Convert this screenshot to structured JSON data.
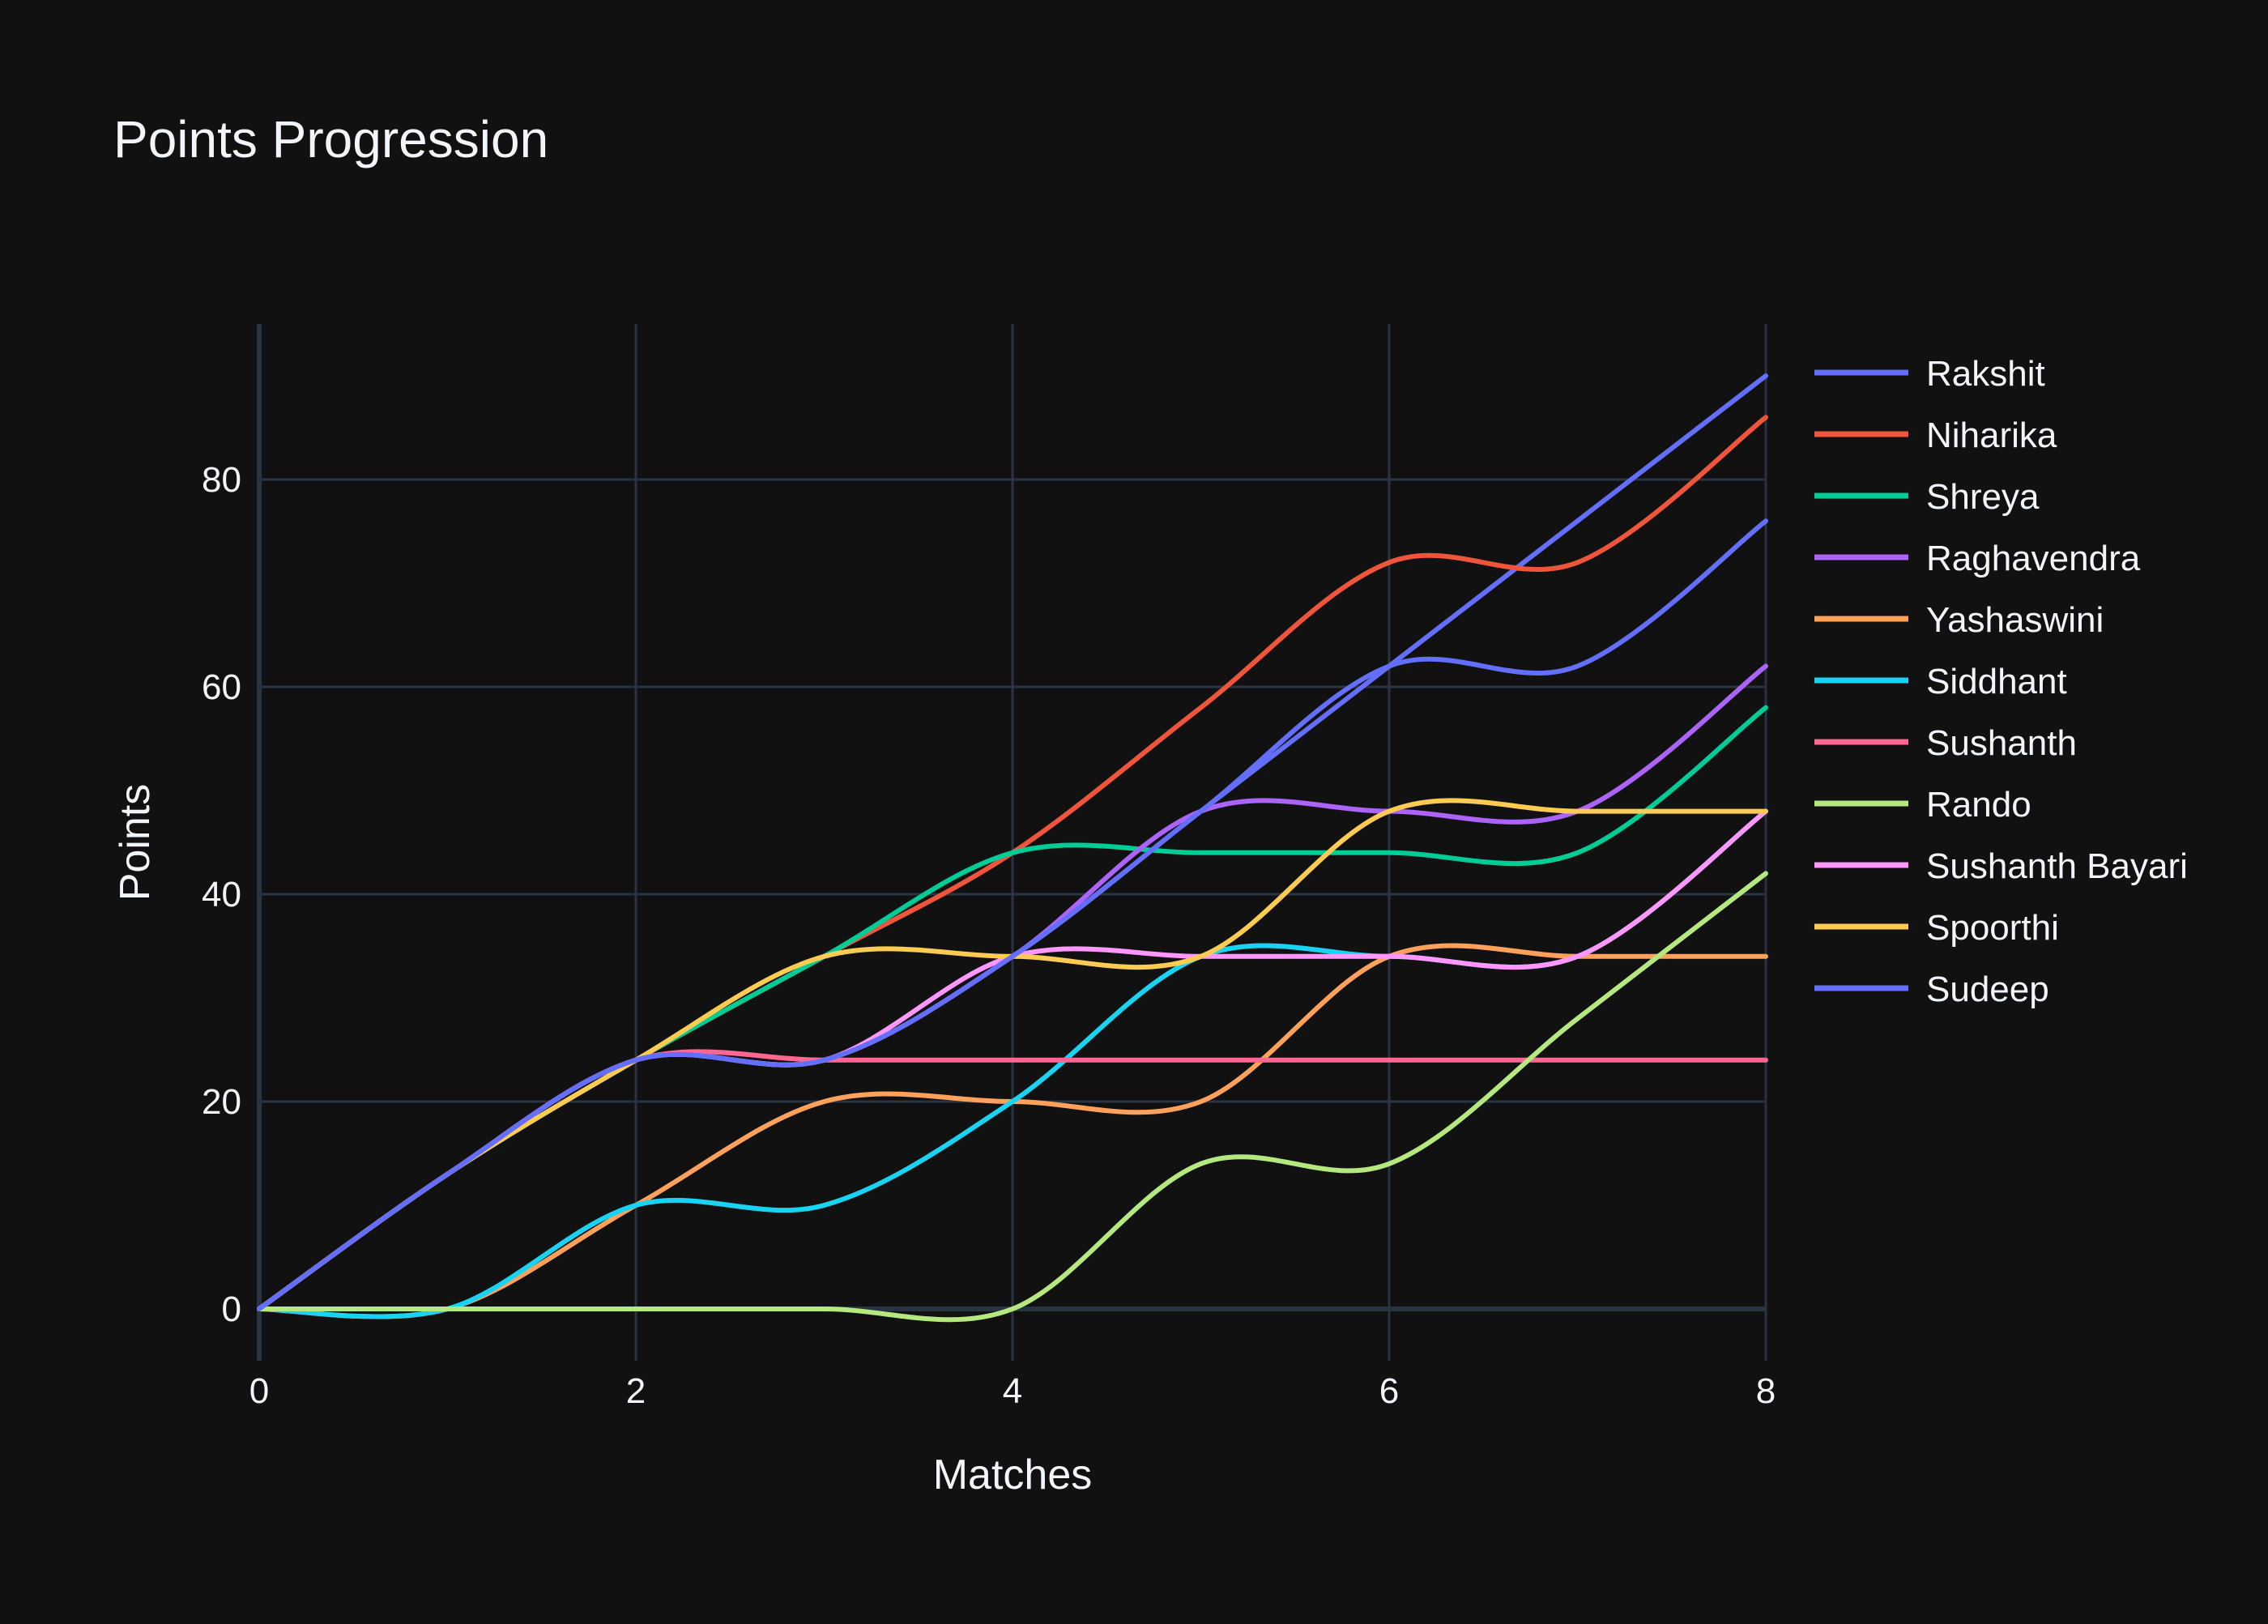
{
  "chart_data": {
    "type": "line",
    "title": "Points Progression",
    "xlabel": "Matches",
    "ylabel": "Points",
    "xlim": [
      0,
      8
    ],
    "ylim": [
      -5,
      95
    ],
    "xticks": [
      0,
      2,
      4,
      6,
      8
    ],
    "yticks": [
      0,
      20,
      40,
      60,
      80
    ],
    "grid": true,
    "legend_position": "right",
    "line_shape": "spline",
    "x": [
      0,
      1,
      2,
      3,
      4,
      5,
      6,
      7,
      8
    ],
    "series": [
      {
        "name": "Rakshit",
        "color": "#636efa",
        "values": [
          0,
          13,
          24,
          24,
          34,
          48,
          62,
          76,
          90
        ]
      },
      {
        "name": "Niharika",
        "color": "#EF553B",
        "values": [
          0,
          13,
          24,
          34,
          44,
          58,
          72,
          72,
          86
        ]
      },
      {
        "name": "Shreya",
        "color": "#00cc96",
        "values": [
          0,
          13,
          24,
          34,
          44,
          44,
          44,
          44,
          58
        ]
      },
      {
        "name": "Raghavendra",
        "color": "#ab63fa",
        "values": [
          0,
          13,
          24,
          24,
          34,
          48,
          48,
          48,
          62
        ]
      },
      {
        "name": "Yashaswini",
        "color": "#FFA15A",
        "values": [
          0,
          0,
          10,
          20,
          20,
          20,
          34,
          34,
          34
        ]
      },
      {
        "name": "Siddhant",
        "color": "#19d3f3",
        "values": [
          0,
          0,
          10,
          10,
          20,
          34,
          34,
          34,
          48
        ]
      },
      {
        "name": "Sushanth",
        "color": "#FF6692",
        "values": [
          0,
          13,
          24,
          24,
          24,
          24,
          24,
          24,
          24
        ]
      },
      {
        "name": "Rando",
        "color": "#B6E880",
        "values": [
          0,
          0,
          0,
          0,
          0,
          14,
          14,
          28,
          42
        ]
      },
      {
        "name": "Sushanth Bayari",
        "color": "#FF97FF",
        "values": [
          0,
          13,
          24,
          24,
          34,
          34,
          34,
          34,
          48
        ]
      },
      {
        "name": "Spoorthi",
        "color": "#FECB52",
        "values": [
          0,
          13,
          24,
          34,
          34,
          34,
          48,
          48,
          48
        ]
      },
      {
        "name": "Sudeep",
        "color": "#636efa",
        "values": [
          0,
          13,
          24,
          24,
          34,
          48,
          62,
          62,
          76
        ]
      }
    ]
  }
}
